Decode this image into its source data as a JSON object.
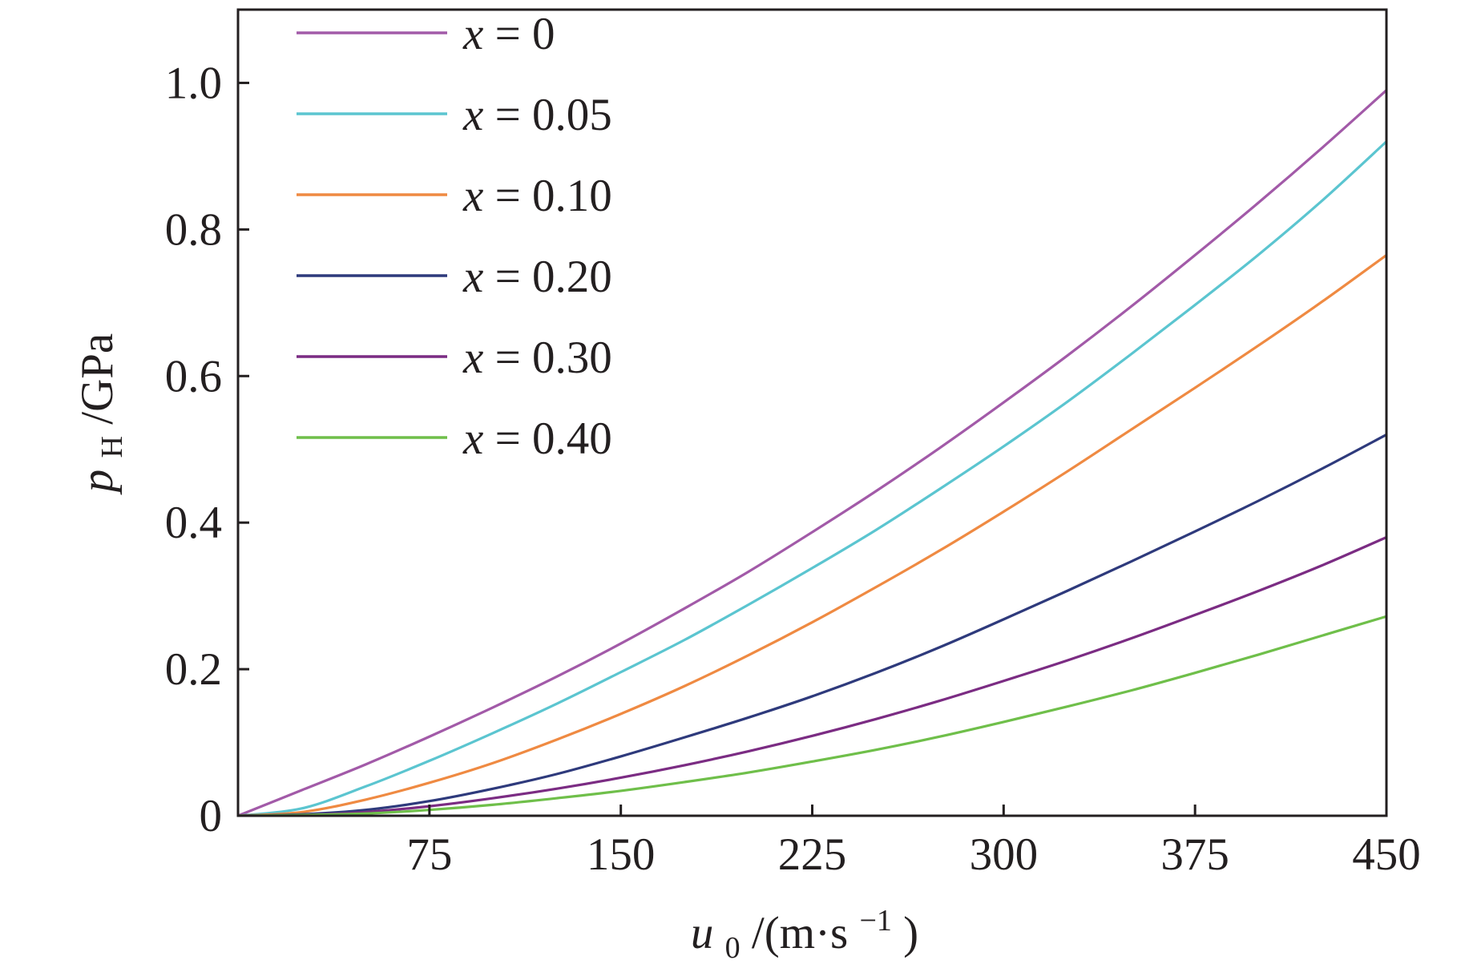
{
  "chart_data": {
    "type": "line",
    "xlim": [
      0,
      450
    ],
    "ylim": [
      0,
      1.1
    ],
    "x_ticks": [
      {
        "value": 75,
        "label": "75"
      },
      {
        "value": 150,
        "label": "150"
      },
      {
        "value": 225,
        "label": "225"
      },
      {
        "value": 300,
        "label": "300"
      },
      {
        "value": 375,
        "label": "375"
      },
      {
        "value": 450,
        "label": "450"
      }
    ],
    "y_ticks": [
      {
        "value": 0,
        "label": "0"
      },
      {
        "value": 0.2,
        "label": "0.2"
      },
      {
        "value": 0.4,
        "label": "0.4"
      },
      {
        "value": 0.6,
        "label": "0.6"
      },
      {
        "value": 0.8,
        "label": "0.8"
      },
      {
        "value": 1.0,
        "label": "1.0"
      }
    ],
    "xlabel": {
      "var": "u",
      "sub": "0",
      "unit_pre": "/(m·s",
      "sup": "−1",
      "unit_post": ")"
    },
    "ylabel": {
      "var": "p",
      "sub": "H",
      "unit": "/GPa"
    },
    "legend": {
      "placement": "top-left"
    },
    "grid": false,
    "series": [
      {
        "name": "x = 0",
        "name_var": "x",
        "name_rest": " = 0",
        "color": "#a25aa8",
        "x": [
          0,
          25,
          50,
          75,
          100,
          125,
          150,
          175,
          200,
          225,
          250,
          275,
          300,
          325,
          350,
          375,
          400,
          425,
          450
        ],
        "y": [
          0,
          0.035,
          0.07,
          0.108,
          0.148,
          0.19,
          0.235,
          0.283,
          0.333,
          0.387,
          0.443,
          0.502,
          0.564,
          0.628,
          0.695,
          0.765,
          0.837,
          0.912,
          0.99
        ]
      },
      {
        "name": "x = 0.05",
        "name_var": "x",
        "name_rest": " = 0.05",
        "color": "#5bc5d0",
        "x": [
          0,
          25,
          50,
          75,
          100,
          125,
          150,
          175,
          200,
          225,
          250,
          275,
          300,
          325,
          350,
          375,
          400,
          425,
          450
        ],
        "y": [
          0,
          0.01,
          0.04,
          0.075,
          0.113,
          0.153,
          0.196,
          0.24,
          0.288,
          0.338,
          0.39,
          0.446,
          0.504,
          0.565,
          0.63,
          0.697,
          0.766,
          0.84,
          0.92
        ]
      },
      {
        "name": "x = 0.10",
        "name_var": "x",
        "name_rest": " = 0.10",
        "color": "#ef8a42",
        "x": [
          0,
          25,
          50,
          75,
          100,
          125,
          150,
          175,
          200,
          225,
          250,
          275,
          300,
          325,
          350,
          375,
          400,
          425,
          450
        ],
        "y": [
          0,
          0.005,
          0.022,
          0.045,
          0.072,
          0.104,
          0.139,
          0.177,
          0.219,
          0.264,
          0.312,
          0.362,
          0.415,
          0.47,
          0.527,
          0.584,
          0.642,
          0.702,
          0.765
        ]
      },
      {
        "name": "x = 0.20",
        "name_var": "x",
        "name_rest": " = 0.20",
        "color": "#2e3a7c",
        "x": [
          0,
          25,
          50,
          75,
          100,
          125,
          150,
          175,
          200,
          225,
          250,
          275,
          300,
          325,
          350,
          375,
          400,
          425,
          450
        ],
        "y": [
          0,
          0.002,
          0.008,
          0.02,
          0.037,
          0.057,
          0.081,
          0.107,
          0.134,
          0.163,
          0.195,
          0.23,
          0.268,
          0.307,
          0.347,
          0.388,
          0.43,
          0.474,
          0.52
        ]
      },
      {
        "name": "x = 0.30",
        "name_var": "x",
        "name_rest": " = 0.30",
        "color": "#7b2c83",
        "x": [
          0,
          25,
          50,
          75,
          100,
          125,
          150,
          175,
          200,
          225,
          250,
          275,
          300,
          325,
          350,
          375,
          400,
          425,
          450
        ],
        "y": [
          0,
          0.001,
          0.005,
          0.013,
          0.024,
          0.037,
          0.052,
          0.069,
          0.088,
          0.109,
          0.132,
          0.157,
          0.184,
          0.212,
          0.242,
          0.274,
          0.307,
          0.342,
          0.38
        ]
      },
      {
        "name": "x = 0.40",
        "name_var": "x",
        "name_rest": " = 0.40",
        "color": "#6fbf4a",
        "x": [
          0,
          25,
          50,
          75,
          100,
          125,
          150,
          175,
          200,
          225,
          250,
          275,
          300,
          325,
          350,
          375,
          400,
          425,
          450
        ],
        "y": [
          0,
          0.001,
          0.003,
          0.008,
          0.015,
          0.024,
          0.034,
          0.046,
          0.059,
          0.074,
          0.09,
          0.108,
          0.128,
          0.149,
          0.171,
          0.195,
          0.22,
          0.246,
          0.272
        ]
      }
    ]
  }
}
